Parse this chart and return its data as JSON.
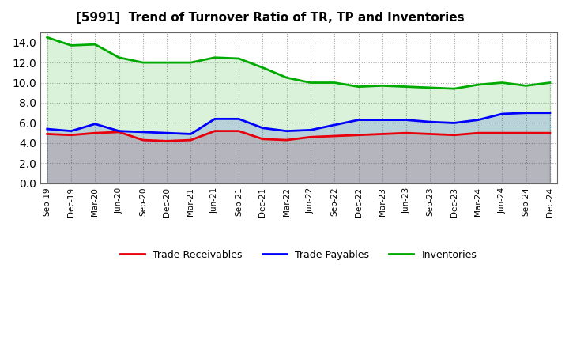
{
  "title": "[5991]  Trend of Turnover Ratio of TR, TP and Inventories",
  "x_labels": [
    "Sep-19",
    "Dec-19",
    "Mar-20",
    "Jun-20",
    "Sep-20",
    "Dec-20",
    "Mar-21",
    "Jun-21",
    "Sep-21",
    "Dec-21",
    "Mar-22",
    "Jun-22",
    "Sep-22",
    "Dec-22",
    "Mar-23",
    "Jun-23",
    "Sep-23",
    "Dec-23",
    "Mar-24",
    "Jun-24",
    "Sep-24",
    "Dec-24"
  ],
  "trade_receivables": [
    4.9,
    4.8,
    5.0,
    5.1,
    4.3,
    4.2,
    4.3,
    5.2,
    5.2,
    4.4,
    4.3,
    4.6,
    4.7,
    4.8,
    4.9,
    5.0,
    4.9,
    4.8,
    5.0,
    5.0,
    5.0,
    5.0
  ],
  "trade_payables": [
    5.4,
    5.2,
    5.9,
    5.2,
    5.1,
    5.0,
    4.9,
    6.4,
    6.4,
    5.5,
    5.2,
    5.3,
    5.8,
    6.3,
    6.3,
    6.3,
    6.1,
    6.0,
    6.3,
    6.9,
    7.0,
    7.0
  ],
  "inventories": [
    14.5,
    13.7,
    13.8,
    12.5,
    12.0,
    12.0,
    12.0,
    12.5,
    12.4,
    11.5,
    10.5,
    10.0,
    10.0,
    9.6,
    9.7,
    9.6,
    9.5,
    9.4,
    9.8,
    10.0,
    9.7,
    10.0
  ],
  "color_tr": "#e8000d",
  "color_tp": "#0000ff",
  "color_inv": "#00aa00",
  "ylim": [
    0,
    15
  ],
  "yticks": [
    0.0,
    2.0,
    4.0,
    6.0,
    8.0,
    10.0,
    12.0,
    14.0
  ],
  "background_color": "#ffffff",
  "plot_bg_color": "#ffffff",
  "grid_color": "#aaaaaa",
  "legend_labels": [
    "Trade Receivables",
    "Trade Payables",
    "Inventories"
  ]
}
